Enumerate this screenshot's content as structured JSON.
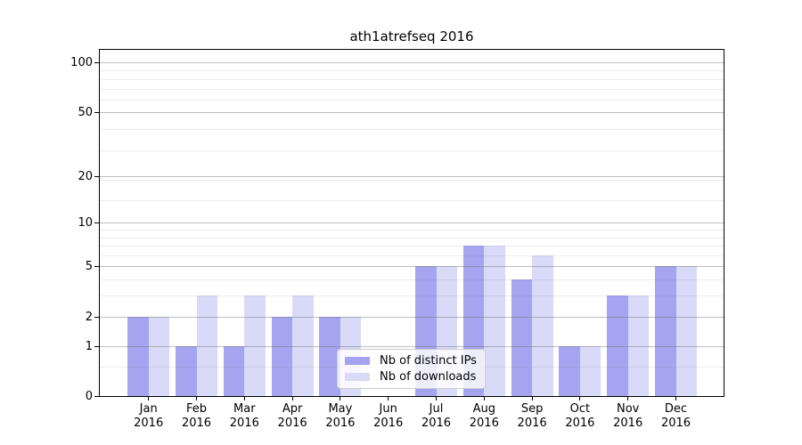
{
  "chart_data": {
    "type": "bar",
    "title": "ath1atrefseq 2016",
    "categories": [
      "Jan",
      "Feb",
      "Mar",
      "Apr",
      "May",
      "Jun",
      "Jul",
      "Aug",
      "Sep",
      "Oct",
      "Nov",
      "Dec"
    ],
    "year_label": "2016",
    "series": [
      {
        "name": "Nb of distinct IPs",
        "color": "#a4a4f0",
        "values": [
          2,
          1,
          1,
          2,
          2,
          0,
          5,
          7,
          4,
          1,
          3,
          5
        ]
      },
      {
        "name": "Nb of downloads",
        "color": "#d9d9f8",
        "values": [
          2,
          3,
          3,
          3,
          2,
          0,
          5,
          7,
          6,
          1,
          3,
          5
        ]
      }
    ],
    "yscale": "log1p",
    "yticks": [
      0,
      1,
      2,
      5,
      10,
      20,
      50,
      100
    ],
    "ylim": [
      0,
      120
    ],
    "grid": true,
    "legend_position": "lower center"
  }
}
